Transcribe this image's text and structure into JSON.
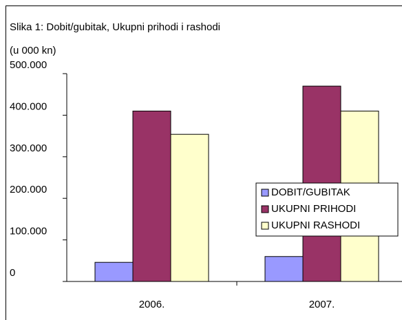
{
  "chart_data": {
    "type": "bar",
    "title": "Slika 1: Dobit/gubitak, Ukupni prihodi i rashodi",
    "subtitle": "(u 000 kn)",
    "categories": [
      "2006.",
      "2007."
    ],
    "series": [
      {
        "name": "DOBIT/GUBITAK",
        "color": "#9999ff",
        "values": [
          46000,
          60000
        ]
      },
      {
        "name": "UKUPNI PRIHODI",
        "color": "#993366",
        "values": [
          410000,
          470000
        ]
      },
      {
        "name": "UKUPNI RASHODI",
        "color": "#ffffcc",
        "values": [
          354000,
          410000
        ]
      }
    ],
    "ylim": [
      0,
      500000
    ],
    "yticks": [
      0,
      {
        "value": 100000,
        "label": "100.000"
      },
      {
        "value": 200000,
        "label": "200.000"
      },
      {
        "value": 300000,
        "label": "300.000"
      },
      {
        "value": 400000,
        "label": "400.000"
      },
      {
        "value": 500000,
        "label": "500.000"
      }
    ],
    "grid": false,
    "legend": "right"
  }
}
